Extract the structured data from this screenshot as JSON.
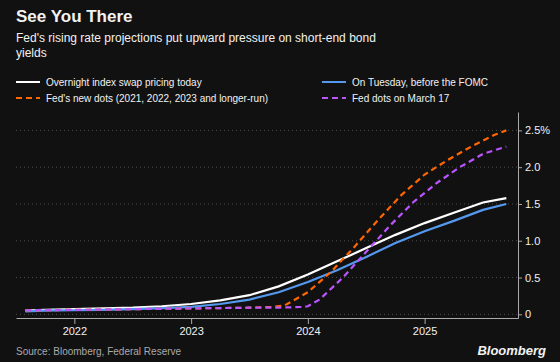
{
  "chart_data": {
    "type": "line",
    "title": "See You There",
    "subtitle": "Fed's rising rate projections put upward pressure on short-end bond\nyields",
    "annotations": [
      "Source: Bloomberg, Federal Reserve",
      "Bloomberg"
    ],
    "xlim": [
      2021.5,
      2025.8
    ],
    "xticks": [
      2022,
      2023,
      2024,
      2025
    ],
    "ylim": [
      -0.05,
      2.75
    ],
    "yticks": [
      0,
      0.5,
      {
        "value": 1.0,
        "label": "1.0"
      },
      {
        "value": 1.5,
        "label": "1.5"
      },
      {
        "value": 2.0,
        "label": "2.0"
      },
      {
        "value": 2.5,
        "label": "2.5%"
      }
    ],
    "grid": true,
    "series": [
      {
        "name": "Overnight index swap pricing today",
        "color": "#ffffff",
        "line_style": "solid",
        "x": [
          2021.58,
          2021.75,
          2022.0,
          2022.25,
          2022.5,
          2022.75,
          2023.0,
          2023.25,
          2023.5,
          2023.75,
          2024.0,
          2024.25,
          2024.5,
          2024.75,
          2025.0,
          2025.25,
          2025.5,
          2025.7
        ],
        "values": [
          0.05,
          0.06,
          0.07,
          0.08,
          0.09,
          0.11,
          0.14,
          0.19,
          0.26,
          0.38,
          0.54,
          0.72,
          0.9,
          1.08,
          1.24,
          1.38,
          1.52,
          1.58
        ]
      },
      {
        "name": "On Tuesday, before the FOMC",
        "color": "#5599ee",
        "line_style": "solid",
        "x": [
          2021.58,
          2021.75,
          2022.0,
          2022.25,
          2022.5,
          2022.75,
          2023.0,
          2023.25,
          2023.5,
          2023.75,
          2024.0,
          2024.25,
          2024.5,
          2024.75,
          2025.0,
          2025.25,
          2025.5,
          2025.7
        ],
        "values": [
          0.04,
          0.05,
          0.055,
          0.06,
          0.07,
          0.085,
          0.1,
          0.14,
          0.2,
          0.3,
          0.44,
          0.6,
          0.78,
          0.97,
          1.13,
          1.27,
          1.42,
          1.5
        ]
      },
      {
        "name": "Fed's new dots (2021, 2022, 2023 and longer-run)",
        "color": "#ff6600",
        "line_style": "dashed",
        "x": [
          2021.58,
          2022.0,
          2022.25,
          2022.5,
          2022.75,
          2023.0,
          2023.25,
          2023.5,
          2023.6,
          2023.7,
          2023.8,
          2024.0,
          2024.2,
          2024.4,
          2024.6,
          2024.8,
          2025.0,
          2025.2,
          2025.4,
          2025.6,
          2025.7
        ],
        "values": [
          0.055,
          0.06,
          0.065,
          0.07,
          0.075,
          0.08,
          0.085,
          0.09,
          0.095,
          0.1,
          0.12,
          0.3,
          0.58,
          0.92,
          1.28,
          1.62,
          1.9,
          2.1,
          2.28,
          2.44,
          2.5
        ]
      },
      {
        "name": "Fed dots on March 17",
        "color": "#bb55ff",
        "line_style": "dashed",
        "x": [
          2021.58,
          2022.0,
          2022.25,
          2022.5,
          2022.75,
          2023.0,
          2023.25,
          2023.5,
          2023.75,
          2023.85,
          2023.95,
          2024.0,
          2024.1,
          2024.3,
          2024.5,
          2024.7,
          2024.9,
          2025.1,
          2025.3,
          2025.5,
          2025.7
        ],
        "values": [
          0.055,
          0.06,
          0.065,
          0.07,
          0.075,
          0.08,
          0.085,
          0.09,
          0.092,
          0.095,
          0.1,
          0.11,
          0.2,
          0.5,
          0.85,
          1.2,
          1.52,
          1.78,
          2.0,
          2.18,
          2.28
        ]
      }
    ]
  }
}
